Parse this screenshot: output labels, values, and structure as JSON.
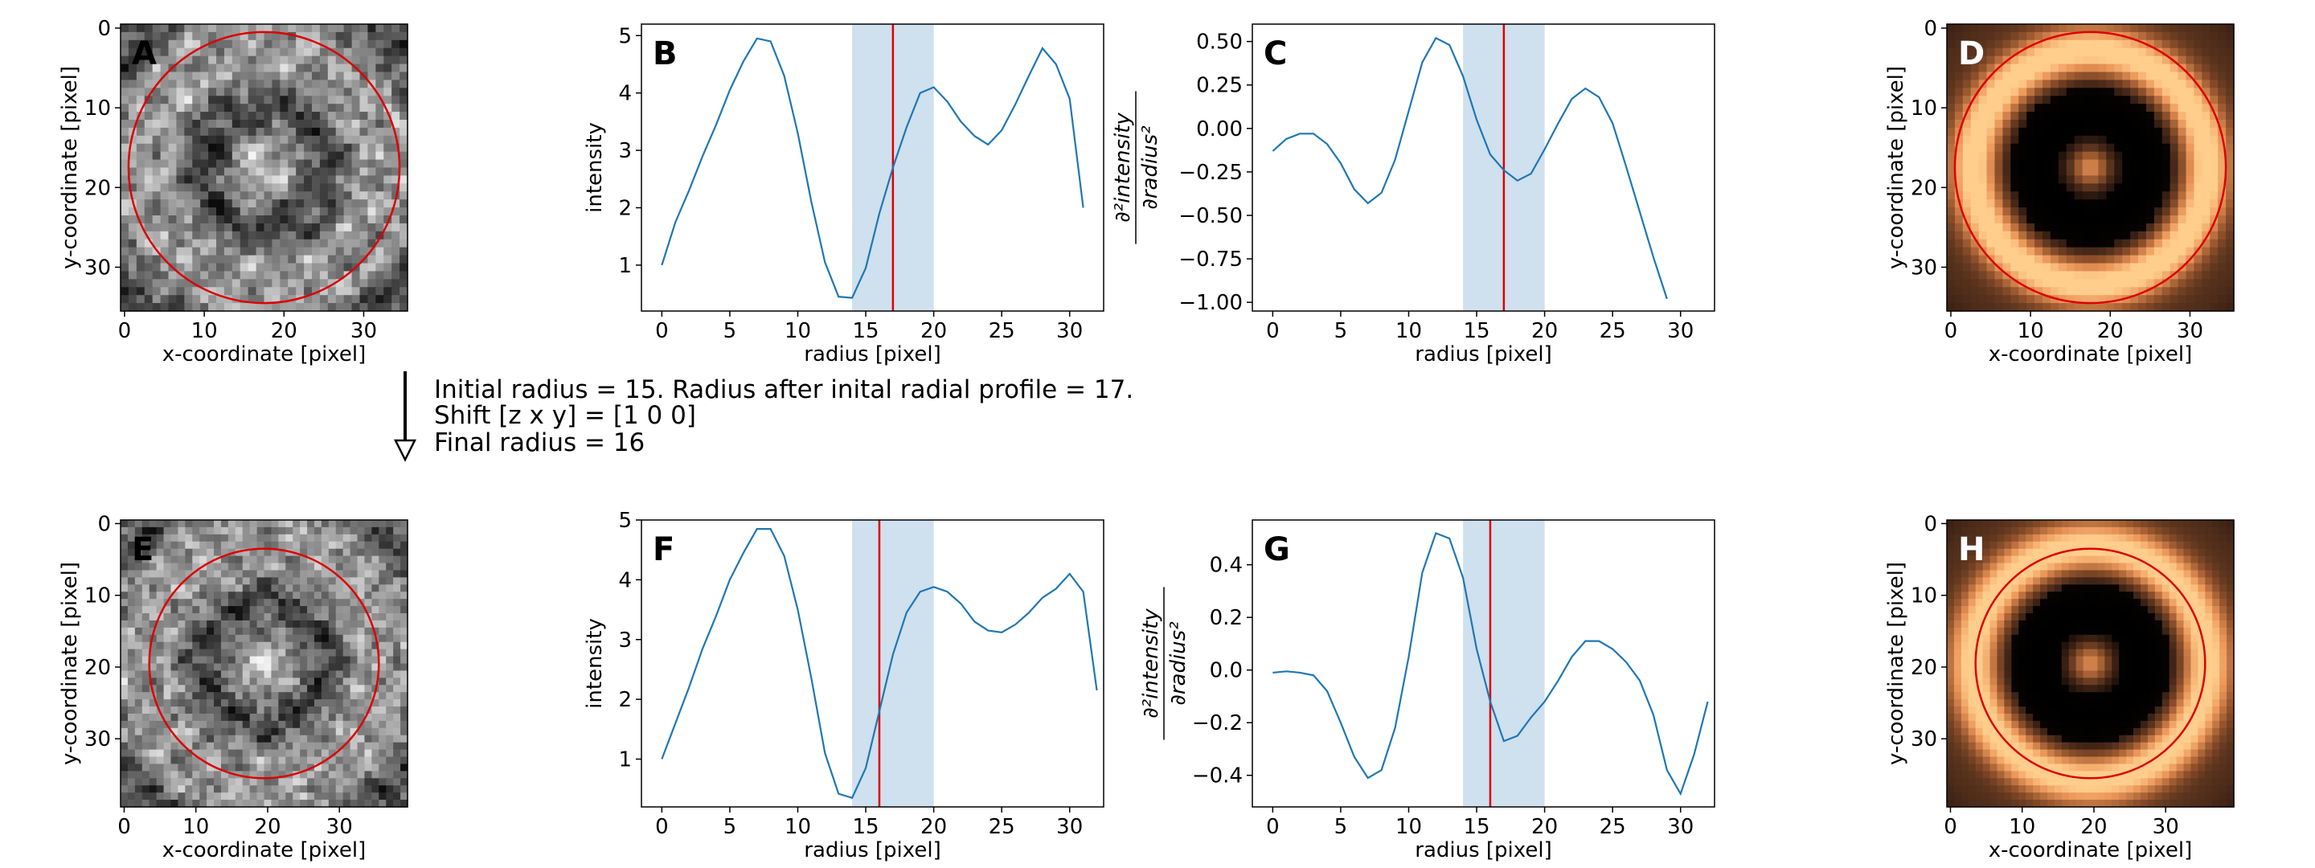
{
  "annotation": {
    "line1": "Initial radius = 15. Radius after inital radial profile = 17.",
    "line2": "Shift [z x y] = [1 0 0]",
    "line3": "Final radius = 16"
  },
  "chart_data": [
    {
      "id": "A",
      "type": "heatmap",
      "letter": "A",
      "letter_color": "#000000",
      "colormap": "gray",
      "size": 36,
      "xlabel": "x-coordinate [pixel]",
      "ylabel": "y-coordinate [pixel]",
      "xticks": [
        0,
        10,
        20,
        30
      ],
      "yticks": [
        0,
        10,
        20,
        30
      ],
      "circle": {
        "cx": 18,
        "cy": 18,
        "r": 17
      },
      "circle_color": "#dd0000"
    },
    {
      "id": "B",
      "type": "line",
      "letter": "B",
      "xlabel": "radius [pixel]",
      "ylabel": "intensity",
      "xlim": [
        -1.5,
        32.5
      ],
      "ylim": [
        0.2,
        5.2
      ],
      "xticks": [
        0,
        5,
        10,
        15,
        20,
        25,
        30
      ],
      "yticks": [
        1,
        2,
        3,
        4,
        5
      ],
      "band": [
        14,
        20
      ],
      "vline": 17,
      "x": [
        0,
        1,
        2,
        3,
        4,
        5,
        6,
        7,
        8,
        9,
        10,
        11,
        12,
        13,
        14,
        15,
        16,
        17,
        18,
        19,
        20,
        21,
        22,
        23,
        24,
        25,
        26,
        27,
        28,
        29,
        30,
        31
      ],
      "values": [
        1.0,
        1.75,
        2.3,
        2.9,
        3.45,
        4.05,
        4.55,
        4.95,
        4.9,
        4.3,
        3.3,
        2.1,
        1.05,
        0.45,
        0.43,
        0.95,
        1.9,
        2.7,
        3.4,
        4.0,
        4.1,
        3.85,
        3.5,
        3.25,
        3.1,
        3.35,
        3.8,
        4.3,
        4.78,
        4.5,
        3.9,
        2.0
      ],
      "line_color": "#1f77b4",
      "band_color": "#cfe0ee",
      "vline_color": "#dd0000"
    },
    {
      "id": "C",
      "type": "line",
      "letter": "C",
      "xlabel": "radius [pixel]",
      "ylabel_parts": {
        "num": "∂²intensity",
        "den": "∂radius²"
      },
      "xlim": [
        -1.5,
        32.5
      ],
      "ylim": [
        -1.05,
        0.6
      ],
      "xticks": [
        0,
        5,
        10,
        15,
        20,
        25,
        30
      ],
      "yticks": [
        0.5,
        0.25,
        0.0,
        -0.25,
        -0.5,
        -0.75,
        -1.0
      ],
      "ytick_labels": [
        "0.50",
        "0.25",
        "0.00",
        "−0.25",
        "−0.50",
        "−0.75",
        "−1.00"
      ],
      "band": [
        14,
        20
      ],
      "vline": 17,
      "x": [
        0,
        1,
        2,
        3,
        4,
        5,
        6,
        7,
        8,
        9,
        10,
        11,
        12,
        13,
        14,
        15,
        16,
        17,
        18,
        19,
        20,
        21,
        22,
        23,
        24,
        25,
        26,
        27,
        28,
        29
      ],
      "values": [
        -0.13,
        -0.06,
        -0.03,
        -0.03,
        -0.09,
        -0.2,
        -0.35,
        -0.43,
        -0.37,
        -0.18,
        0.1,
        0.38,
        0.52,
        0.48,
        0.3,
        0.05,
        -0.15,
        -0.24,
        -0.3,
        -0.26,
        -0.12,
        0.03,
        0.17,
        0.23,
        0.18,
        0.03,
        -0.22,
        -0.48,
        -0.74,
        -0.98
      ],
      "line_color": "#1f77b4",
      "band_color": "#cfe0ee",
      "vline_color": "#dd0000"
    },
    {
      "id": "D",
      "type": "heatmap",
      "letter": "D",
      "letter_color": "#ffffff",
      "colormap": "copper-ring",
      "size": 36,
      "xlabel": "x-coordinate [pixel]",
      "ylabel": "y-coordinate [pixel]",
      "xticks": [
        0,
        10,
        20,
        30
      ],
      "yticks": [
        0,
        10,
        20,
        30
      ],
      "circle": {
        "cx": 18,
        "cy": 18,
        "r": 17
      },
      "circle_color": "#dd0000"
    },
    {
      "id": "E",
      "type": "heatmap",
      "letter": "E",
      "letter_color": "#000000",
      "colormap": "gray",
      "size": 40,
      "xlabel": "x-coordinate [pixel]",
      "ylabel": "y-coordinate [pixel]",
      "xticks": [
        0,
        10,
        20,
        30
      ],
      "yticks": [
        0,
        10,
        20,
        30
      ],
      "circle": {
        "cx": 20,
        "cy": 20,
        "r": 16
      },
      "circle_color": "#dd0000"
    },
    {
      "id": "F",
      "type": "line",
      "letter": "F",
      "xlabel": "radius [pixel]",
      "ylabel": "intensity",
      "xlim": [
        -1.5,
        32.5
      ],
      "ylim": [
        0.2,
        5.0
      ],
      "xticks": [
        0,
        5,
        10,
        15,
        20,
        25,
        30
      ],
      "yticks": [
        1,
        2,
        3,
        4,
        5
      ],
      "band": [
        14,
        20
      ],
      "vline": 16,
      "x": [
        0,
        1,
        2,
        3,
        4,
        5,
        6,
        7,
        8,
        9,
        10,
        11,
        12,
        13,
        14,
        15,
        16,
        17,
        18,
        19,
        20,
        21,
        22,
        23,
        24,
        25,
        26,
        27,
        28,
        29,
        30,
        31,
        32
      ],
      "values": [
        1.0,
        1.6,
        2.2,
        2.85,
        3.4,
        4.0,
        4.45,
        4.85,
        4.85,
        4.4,
        3.5,
        2.35,
        1.1,
        0.42,
        0.35,
        0.85,
        1.8,
        2.75,
        3.45,
        3.8,
        3.88,
        3.8,
        3.6,
        3.3,
        3.15,
        3.12,
        3.25,
        3.45,
        3.7,
        3.85,
        4.1,
        3.8,
        2.15
      ],
      "line_color": "#1f77b4",
      "band_color": "#cfe0ee",
      "vline_color": "#dd0000"
    },
    {
      "id": "G",
      "type": "line",
      "letter": "G",
      "xlabel": "radius [pixel]",
      "ylabel_parts": {
        "num": "∂²intensity",
        "den": "∂radius²"
      },
      "xlim": [
        -1.5,
        32.5
      ],
      "ylim": [
        -0.52,
        0.57
      ],
      "xticks": [
        0,
        5,
        10,
        15,
        20,
        25,
        30
      ],
      "yticks": [
        0.4,
        0.2,
        0.0,
        -0.2,
        -0.4
      ],
      "ytick_labels": [
        "0.4",
        "0.2",
        "0.0",
        "−0.2",
        "−0.4"
      ],
      "band": [
        14,
        20
      ],
      "vline": 16,
      "x": [
        0,
        1,
        2,
        3,
        4,
        5,
        6,
        7,
        8,
        9,
        10,
        11,
        12,
        13,
        14,
        15,
        16,
        17,
        18,
        19,
        20,
        21,
        22,
        23,
        24,
        25,
        26,
        27,
        28,
        29,
        30,
        31,
        32
      ],
      "values": [
        -0.01,
        -0.005,
        -0.01,
        -0.02,
        -0.08,
        -0.2,
        -0.33,
        -0.41,
        -0.38,
        -0.22,
        0.05,
        0.37,
        0.52,
        0.5,
        0.35,
        0.08,
        -0.12,
        -0.27,
        -0.25,
        -0.18,
        -0.12,
        -0.04,
        0.05,
        0.11,
        0.11,
        0.08,
        0.03,
        -0.04,
        -0.17,
        -0.38,
        -0.47,
        -0.32,
        -0.12
      ],
      "line_color": "#1f77b4",
      "band_color": "#cfe0ee",
      "vline_color": "#dd0000"
    },
    {
      "id": "H",
      "type": "heatmap",
      "letter": "H",
      "letter_color": "#ffffff",
      "colormap": "copper-ring",
      "size": 40,
      "xlabel": "x-coordinate [pixel]",
      "ylabel": "y-coordinate [pixel]",
      "xticks": [
        0,
        10,
        20,
        30
      ],
      "yticks": [
        0,
        10,
        20,
        30
      ],
      "circle": {
        "cx": 20,
        "cy": 20,
        "r": 16
      },
      "circle_color": "#dd0000"
    }
  ]
}
